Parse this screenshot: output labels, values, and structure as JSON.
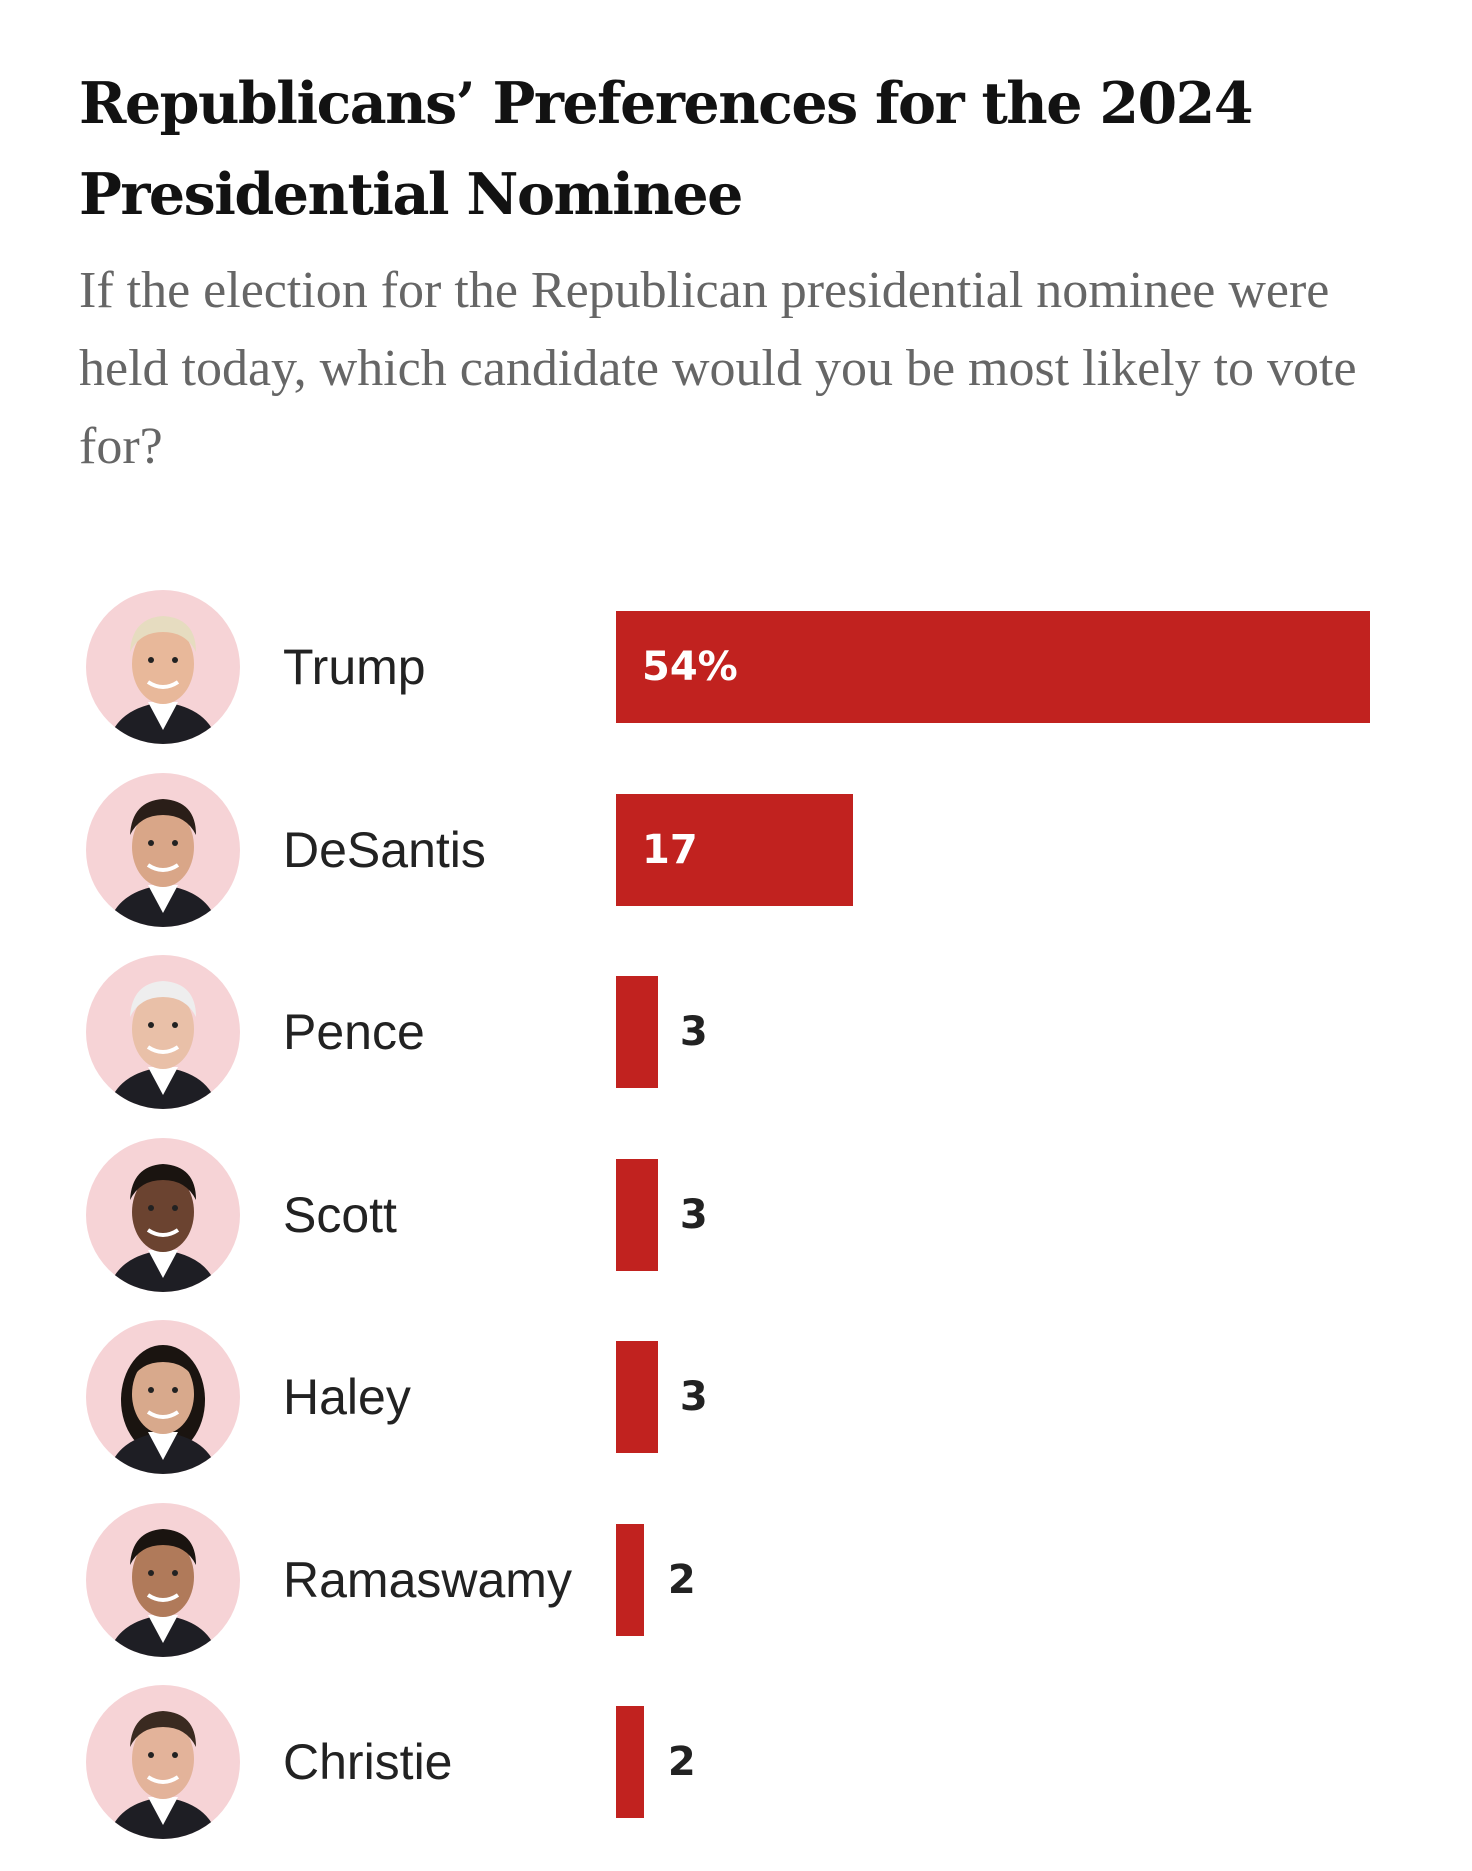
{
  "chart_data": {
    "type": "bar",
    "orientation": "horizontal",
    "title": "Republicans’ Preferences for the 2024 Presidential Nominee",
    "subtitle": "If the election for the Republican presidential nominee were held today, which candidate would you be most likely to vote for?",
    "categories": [
      "Trump",
      "DeSantis",
      "Pence",
      "Scott",
      "Haley",
      "Ramaswamy",
      "Christie"
    ],
    "values": [
      54,
      17,
      3,
      3,
      3,
      2,
      2
    ],
    "value_labels": [
      "54%",
      "17",
      "3",
      "3",
      "3",
      "2",
      "2"
    ],
    "unit": "%",
    "xlim": [
      0,
      54
    ],
    "grid": false,
    "legend": "none",
    "bar_color": "#c1221f",
    "avatar_bg": "#f6d3d6"
  }
}
